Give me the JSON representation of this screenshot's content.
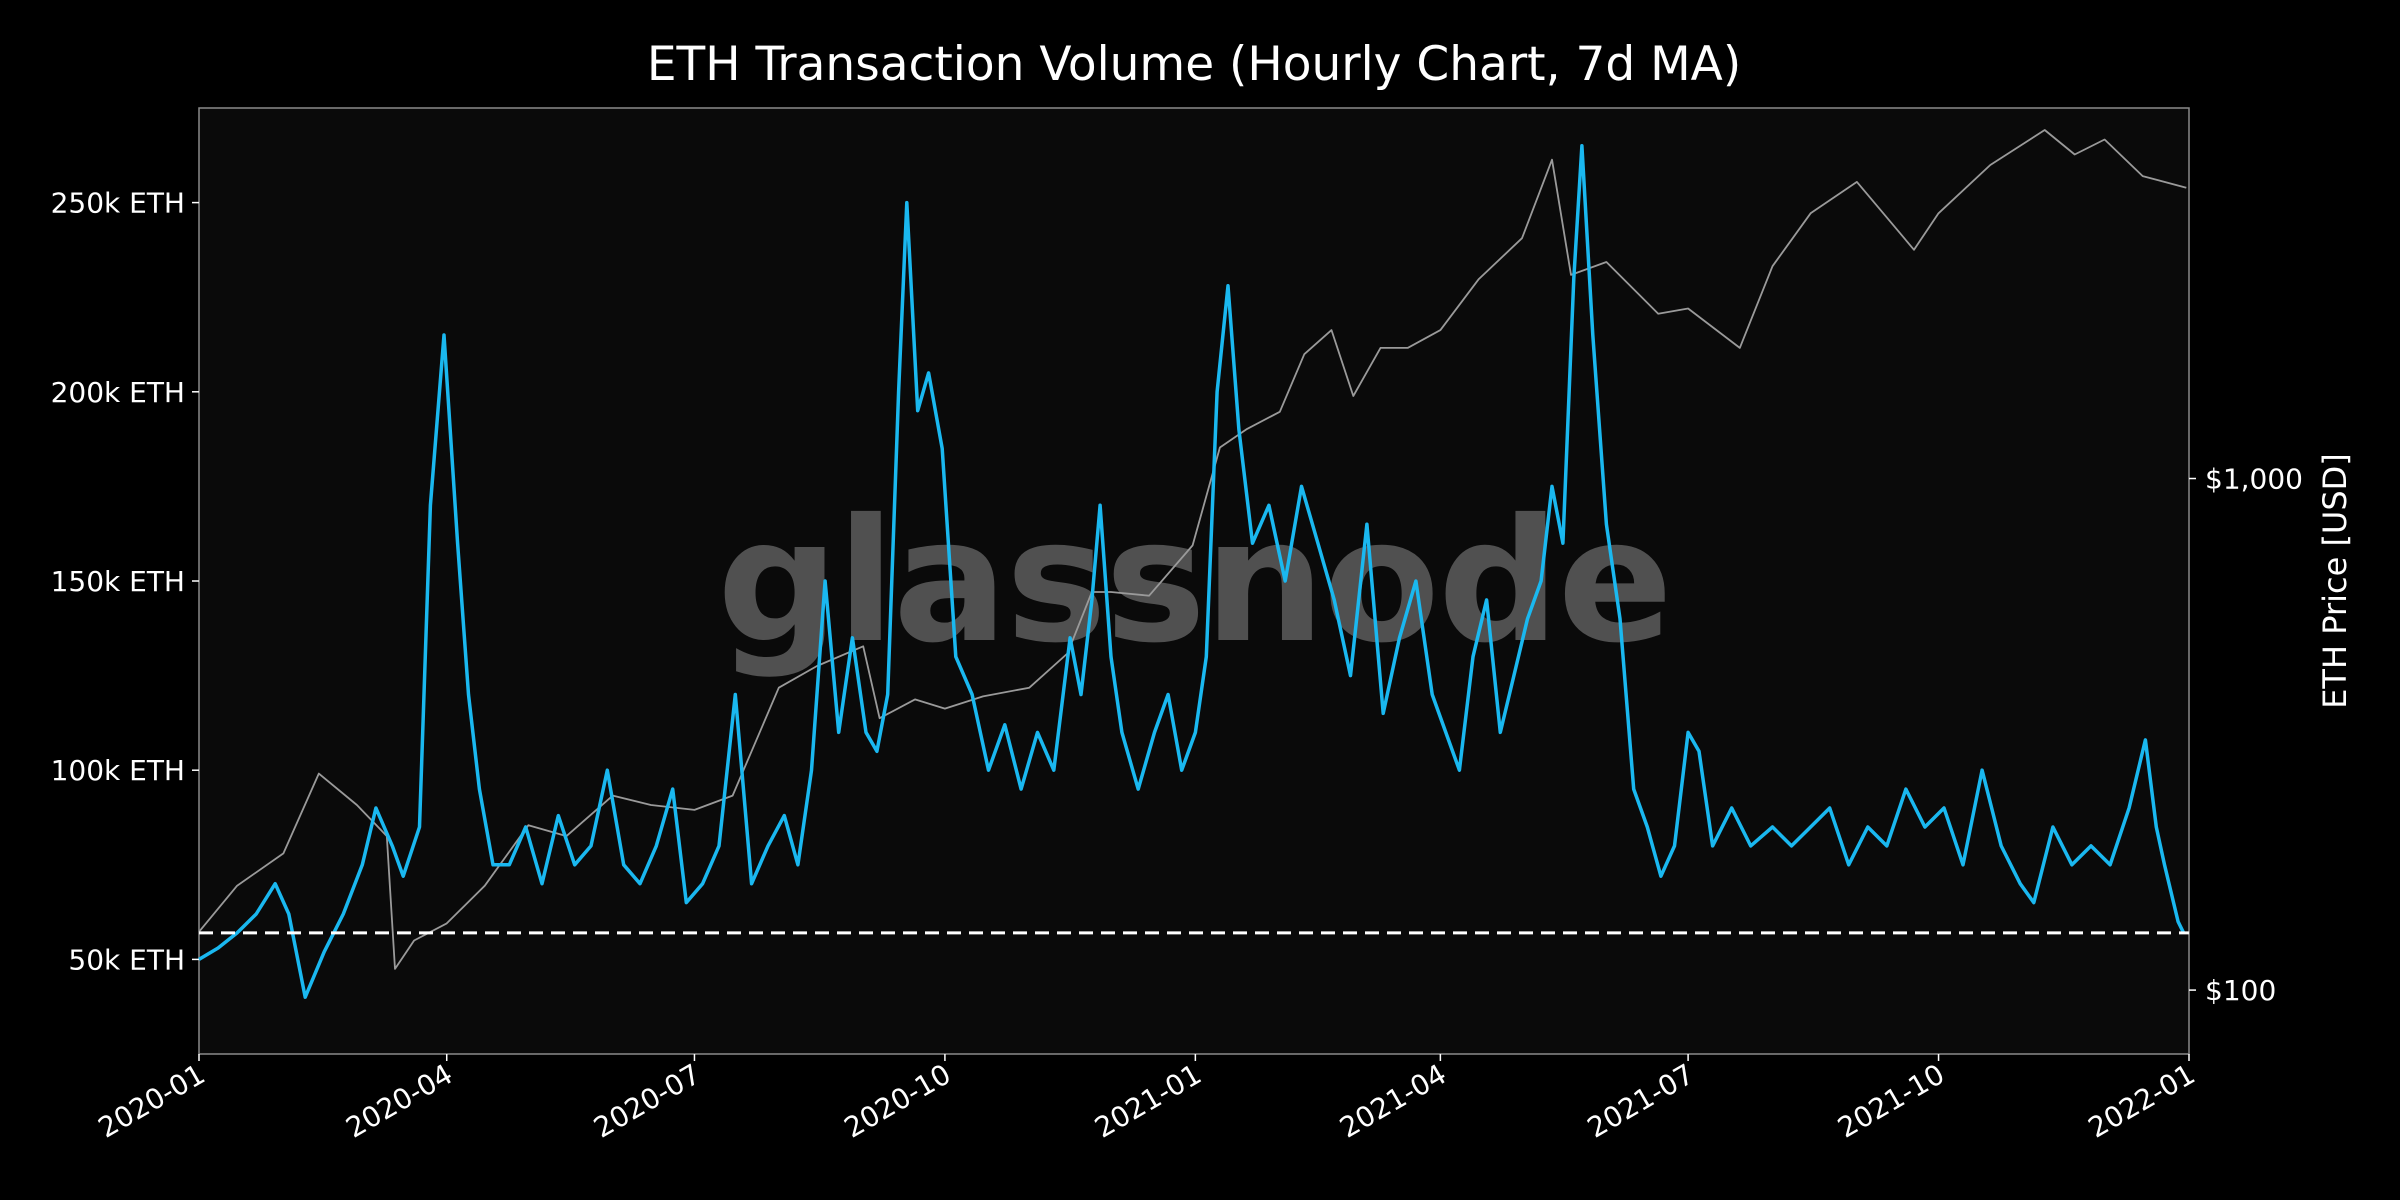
{
  "chart_data": {
    "type": "line",
    "title": "ETH Transaction Volume (Hourly Chart, 7d MA)",
    "watermark": "glassnode",
    "xlabel": "",
    "ylabel_left": "",
    "ylabel_right": "ETH Price [USD]",
    "x_range": [
      "2020-01-01",
      "2022-01-01"
    ],
    "x_ticks": [
      "2020-01",
      "2020-04",
      "2020-07",
      "2020-10",
      "2021-01",
      "2021-04",
      "2021-07",
      "2021-10",
      "2022-01"
    ],
    "y_left": {
      "scale": "linear",
      "range": [
        25000,
        275000
      ],
      "ticks": [
        50000,
        100000,
        150000,
        200000,
        250000
      ],
      "tick_labels": [
        "50k ETH",
        "100k ETH",
        "150k ETH",
        "200k ETH",
        "250k ETH"
      ]
    },
    "y_right": {
      "scale": "log",
      "range": [
        75,
        5300
      ],
      "ticks": [
        100,
        1000
      ],
      "tick_labels": [
        "$100",
        "$1,000"
      ]
    },
    "grid": false,
    "reference_line": {
      "axis": "left",
      "value": 57000,
      "style": "dashed",
      "color": "#ffffff"
    },
    "colors": {
      "background": "#000000",
      "plot_background": "#0a0a0a",
      "volume": "#1ab8f0",
      "price": "#9a9a9a"
    },
    "series": [
      {
        "axis": "left",
        "color": "#1ab8f0",
        "points": [
          [
            "2020-01-01",
            50000
          ],
          [
            "2020-01-08",
            53000
          ],
          [
            "2020-01-15",
            57000
          ],
          [
            "2020-01-22",
            62000
          ],
          [
            "2020-01-29",
            70000
          ],
          [
            "2020-02-03",
            62000
          ],
          [
            "2020-02-09",
            40000
          ],
          [
            "2020-02-16",
            52000
          ],
          [
            "2020-02-23",
            62000
          ],
          [
            "2020-03-01",
            75000
          ],
          [
            "2020-03-06",
            90000
          ],
          [
            "2020-03-12",
            80000
          ],
          [
            "2020-03-16",
            72000
          ],
          [
            "2020-03-22",
            85000
          ],
          [
            "2020-03-26",
            170000
          ],
          [
            "2020-03-31",
            215000
          ],
          [
            "2020-04-05",
            160000
          ],
          [
            "2020-04-09",
            120000
          ],
          [
            "2020-04-13",
            95000
          ],
          [
            "2020-04-18",
            75000
          ],
          [
            "2020-04-24",
            75000
          ],
          [
            "2020-04-30",
            85000
          ],
          [
            "2020-05-06",
            70000
          ],
          [
            "2020-05-12",
            88000
          ],
          [
            "2020-05-18",
            75000
          ],
          [
            "2020-05-24",
            80000
          ],
          [
            "2020-05-30",
            100000
          ],
          [
            "2020-06-05",
            75000
          ],
          [
            "2020-06-11",
            70000
          ],
          [
            "2020-06-17",
            80000
          ],
          [
            "2020-06-23",
            95000
          ],
          [
            "2020-06-28",
            65000
          ],
          [
            "2020-07-04",
            70000
          ],
          [
            "2020-07-10",
            80000
          ],
          [
            "2020-07-16",
            120000
          ],
          [
            "2020-07-22",
            70000
          ],
          [
            "2020-07-28",
            80000
          ],
          [
            "2020-08-03",
            88000
          ],
          [
            "2020-08-08",
            75000
          ],
          [
            "2020-08-13",
            100000
          ],
          [
            "2020-08-18",
            150000
          ],
          [
            "2020-08-23",
            110000
          ],
          [
            "2020-08-28",
            135000
          ],
          [
            "2020-09-02",
            110000
          ],
          [
            "2020-09-06",
            105000
          ],
          [
            "2020-09-10",
            120000
          ],
          [
            "2020-09-14",
            200000
          ],
          [
            "2020-09-17",
            250000
          ],
          [
            "2020-09-21",
            195000
          ],
          [
            "2020-09-25",
            205000
          ],
          [
            "2020-09-30",
            185000
          ],
          [
            "2020-10-05",
            130000
          ],
          [
            "2020-10-11",
            120000
          ],
          [
            "2020-10-17",
            100000
          ],
          [
            "2020-10-23",
            112000
          ],
          [
            "2020-10-29",
            95000
          ],
          [
            "2020-11-04",
            110000
          ],
          [
            "2020-11-10",
            100000
          ],
          [
            "2020-11-16",
            135000
          ],
          [
            "2020-11-20",
            120000
          ],
          [
            "2020-11-24",
            145000
          ],
          [
            "2020-11-27",
            170000
          ],
          [
            "2020-12-01",
            130000
          ],
          [
            "2020-12-05",
            110000
          ],
          [
            "2020-12-11",
            95000
          ],
          [
            "2020-12-17",
            110000
          ],
          [
            "2020-12-22",
            120000
          ],
          [
            "2020-12-27",
            100000
          ],
          [
            "2021-01-01",
            110000
          ],
          [
            "2021-01-05",
            130000
          ],
          [
            "2021-01-09",
            200000
          ],
          [
            "2021-01-13",
            228000
          ],
          [
            "2021-01-17",
            190000
          ],
          [
            "2021-01-22",
            160000
          ],
          [
            "2021-01-28",
            170000
          ],
          [
            "2021-02-03",
            150000
          ],
          [
            "2021-02-09",
            175000
          ],
          [
            "2021-02-15",
            160000
          ],
          [
            "2021-02-21",
            145000
          ],
          [
            "2021-02-27",
            125000
          ],
          [
            "2021-03-05",
            165000
          ],
          [
            "2021-03-11",
            115000
          ],
          [
            "2021-03-17",
            135000
          ],
          [
            "2021-03-23",
            150000
          ],
          [
            "2021-03-29",
            120000
          ],
          [
            "2021-04-03",
            110000
          ],
          [
            "2021-04-08",
            100000
          ],
          [
            "2021-04-13",
            130000
          ],
          [
            "2021-04-18",
            145000
          ],
          [
            "2021-04-23",
            110000
          ],
          [
            "2021-04-28",
            125000
          ],
          [
            "2021-05-03",
            140000
          ],
          [
            "2021-05-08",
            150000
          ],
          [
            "2021-05-12",
            175000
          ],
          [
            "2021-05-16",
            160000
          ],
          [
            "2021-05-20",
            230000
          ],
          [
            "2021-05-23",
            265000
          ],
          [
            "2021-05-27",
            215000
          ],
          [
            "2021-06-01",
            165000
          ],
          [
            "2021-06-06",
            140000
          ],
          [
            "2021-06-11",
            95000
          ],
          [
            "2021-06-16",
            85000
          ],
          [
            "2021-06-21",
            72000
          ],
          [
            "2021-06-26",
            80000
          ],
          [
            "2021-07-01",
            110000
          ],
          [
            "2021-07-05",
            105000
          ],
          [
            "2021-07-10",
            80000
          ],
          [
            "2021-07-17",
            90000
          ],
          [
            "2021-07-24",
            80000
          ],
          [
            "2021-08-01",
            85000
          ],
          [
            "2021-08-08",
            80000
          ],
          [
            "2021-08-15",
            85000
          ],
          [
            "2021-08-22",
            90000
          ],
          [
            "2021-08-29",
            75000
          ],
          [
            "2021-09-05",
            85000
          ],
          [
            "2021-09-12",
            80000
          ],
          [
            "2021-09-19",
            95000
          ],
          [
            "2021-09-26",
            85000
          ],
          [
            "2021-10-03",
            90000
          ],
          [
            "2021-10-10",
            75000
          ],
          [
            "2021-10-17",
            100000
          ],
          [
            "2021-10-24",
            80000
          ],
          [
            "2021-10-31",
            70000
          ],
          [
            "2021-11-05",
            65000
          ],
          [
            "2021-11-12",
            85000
          ],
          [
            "2021-11-19",
            75000
          ],
          [
            "2021-11-26",
            80000
          ],
          [
            "2021-12-03",
            75000
          ],
          [
            "2021-12-10",
            90000
          ],
          [
            "2021-12-16",
            108000
          ],
          [
            "2021-12-20",
            85000
          ],
          [
            "2021-12-23",
            75000
          ],
          [
            "2021-12-28",
            60000
          ],
          [
            "2021-12-30",
            57000
          ]
        ]
      },
      {
        "axis": "right",
        "color": "#9a9a9a",
        "points": [
          [
            "2020-01-01",
            130
          ],
          [
            "2020-01-15",
            160
          ],
          [
            "2020-02-01",
            185
          ],
          [
            "2020-02-14",
            265
          ],
          [
            "2020-02-28",
            230
          ],
          [
            "2020-03-10",
            200
          ],
          [
            "2020-03-13",
            110
          ],
          [
            "2020-03-20",
            125
          ],
          [
            "2020-04-01",
            135
          ],
          [
            "2020-04-15",
            160
          ],
          [
            "2020-05-01",
            210
          ],
          [
            "2020-05-15",
            200
          ],
          [
            "2020-06-01",
            240
          ],
          [
            "2020-06-15",
            230
          ],
          [
            "2020-07-01",
            225
          ],
          [
            "2020-07-15",
            240
          ],
          [
            "2020-08-01",
            390
          ],
          [
            "2020-08-15",
            430
          ],
          [
            "2020-09-01",
            470
          ],
          [
            "2020-09-07",
            340
          ],
          [
            "2020-09-20",
            370
          ],
          [
            "2020-10-01",
            355
          ],
          [
            "2020-10-15",
            375
          ],
          [
            "2020-11-01",
            390
          ],
          [
            "2020-11-15",
            455
          ],
          [
            "2020-11-24",
            600
          ],
          [
            "2020-12-01",
            600
          ],
          [
            "2020-12-15",
            590
          ],
          [
            "2020-12-31",
            740
          ],
          [
            "2021-01-10",
            1150
          ],
          [
            "2021-01-20",
            1250
          ],
          [
            "2021-02-01",
            1350
          ],
          [
            "2021-02-10",
            1750
          ],
          [
            "2021-02-20",
            1950
          ],
          [
            "2021-02-28",
            1450
          ],
          [
            "2021-03-10",
            1800
          ],
          [
            "2021-03-20",
            1800
          ],
          [
            "2021-04-01",
            1950
          ],
          [
            "2021-04-15",
            2450
          ],
          [
            "2021-05-01",
            2950
          ],
          [
            "2021-05-12",
            4200
          ],
          [
            "2021-05-19",
            2500
          ],
          [
            "2021-06-01",
            2650
          ],
          [
            "2021-06-20",
            2100
          ],
          [
            "2021-07-01",
            2150
          ],
          [
            "2021-07-20",
            1800
          ],
          [
            "2021-08-01",
            2600
          ],
          [
            "2021-08-15",
            3300
          ],
          [
            "2021-09-01",
            3800
          ],
          [
            "2021-09-22",
            2800
          ],
          [
            "2021-10-01",
            3300
          ],
          [
            "2021-10-20",
            4100
          ],
          [
            "2021-11-09",
            4800
          ],
          [
            "2021-11-20",
            4300
          ],
          [
            "2021-12-01",
            4600
          ],
          [
            "2021-12-15",
            3900
          ],
          [
            "2021-12-31",
            3700
          ]
        ]
      }
    ]
  }
}
